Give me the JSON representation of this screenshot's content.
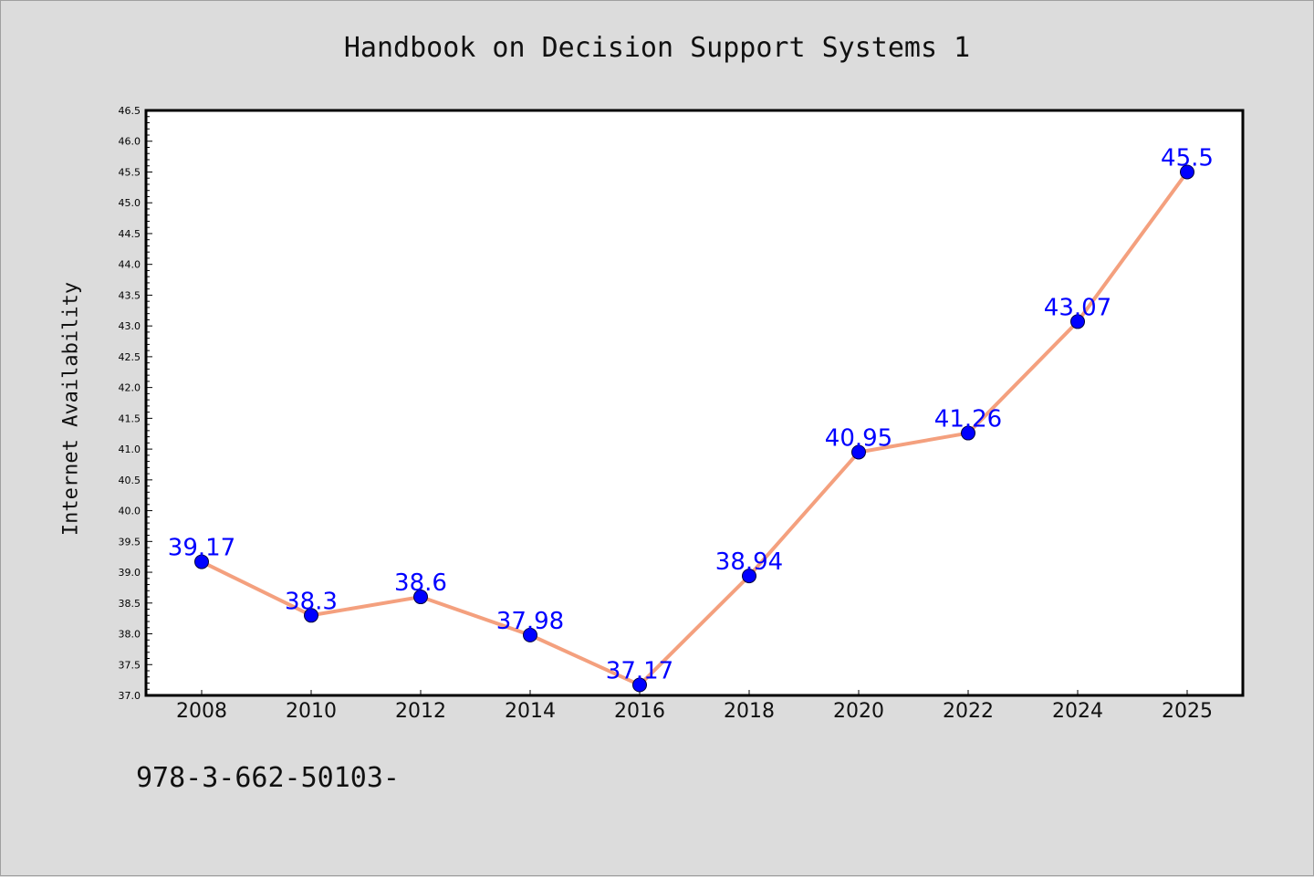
{
  "title": "Handbook on Decision Support Systems 1",
  "footer_code": "978-3-662-50103-",
  "colors": {
    "background": "#dcdcdc",
    "plot_background": "#ffffff",
    "line": "#f4a07e",
    "marker": "#0000ff",
    "data_label": "#0000ff"
  },
  "chart_data": {
    "type": "line",
    "title": "Handbook on Decision Support Systems 1",
    "xlabel": "",
    "ylabel": "Internet Availability",
    "categories": [
      "2008",
      "2010",
      "2012",
      "2014",
      "2016",
      "2018",
      "2020",
      "2022",
      "2024",
      "2025"
    ],
    "series": [
      {
        "values": [
          39.17,
          38.3,
          38.6,
          37.98,
          37.17,
          38.94,
          40.95,
          41.26,
          43.07,
          45.5
        ]
      }
    ],
    "data_labels": [
      "39.17",
      "38.3",
      "38.6",
      "37.98",
      "37.17",
      "38.94",
      "40.95",
      "41.26",
      "43.07",
      "45.5"
    ],
    "ylim": [
      37.0,
      46.5
    ],
    "ytick_step": 0.5,
    "grid": false,
    "legend": "none",
    "marker": "circle"
  }
}
